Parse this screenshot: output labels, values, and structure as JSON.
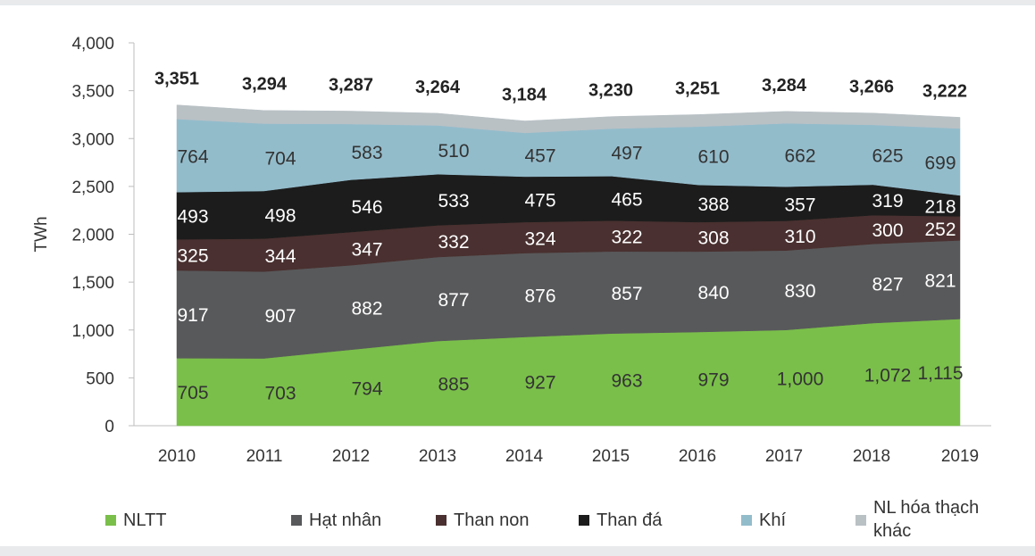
{
  "chart_data": {
    "type": "area",
    "stacked": true,
    "title": "",
    "xlabel": "",
    "ylabel": "TWh",
    "ylim": [
      0,
      4000
    ],
    "yticks": [
      0,
      500,
      1000,
      1500,
      2000,
      2500,
      3000,
      3500,
      4000
    ],
    "ytick_labels": [
      "0",
      "500",
      "1,000",
      "1,500",
      "2,000",
      "2,500",
      "3,000",
      "3,500",
      "4,000"
    ],
    "grid": false,
    "legend_position": "bottom",
    "x": [
      "2010",
      "2011",
      "2012",
      "2013",
      "2014",
      "2015",
      "2016",
      "2017",
      "2018",
      "2019"
    ],
    "totals": [
      3351,
      3294,
      3287,
      3264,
      3184,
      3230,
      3251,
      3284,
      3266,
      3222
    ],
    "total_labels": [
      "3,351",
      "3,294",
      "3,287",
      "3,264",
      "3,184",
      "3,230",
      "3,251",
      "3,284",
      "3,266",
      "3,222"
    ],
    "series": [
      {
        "name": "NLTT",
        "color": "#7abf4a",
        "values": [
          705,
          703,
          794,
          885,
          927,
          963,
          979,
          1000,
          1072,
          1115
        ],
        "labels": [
          "705",
          "703",
          "794",
          "885",
          "927",
          "963",
          "979",
          "1,000",
          "1,072",
          "1,115"
        ],
        "label_color": "#333333"
      },
      {
        "name": "Hạt nhân",
        "color": "#58595b",
        "values": [
          917,
          907,
          882,
          877,
          876,
          857,
          840,
          830,
          827,
          821
        ],
        "labels": [
          "917",
          "907",
          "882",
          "877",
          "876",
          "857",
          "840",
          "830",
          "827",
          "821"
        ],
        "label_color": "#ffffff"
      },
      {
        "name": "Than non",
        "color": "#4a3030",
        "values": [
          325,
          344,
          347,
          332,
          324,
          322,
          308,
          310,
          300,
          252
        ],
        "labels": [
          "325",
          "344",
          "347",
          "332",
          "324",
          "322",
          "308",
          "310",
          "300",
          "252"
        ],
        "label_color": "#ffffff"
      },
      {
        "name": "Than đá",
        "color": "#1c1c1c",
        "values": [
          493,
          498,
          546,
          533,
          475,
          465,
          388,
          357,
          319,
          218
        ],
        "labels": [
          "493",
          "498",
          "546",
          "533",
          "475",
          "465",
          "388",
          "357",
          "319",
          "218"
        ],
        "label_color": "#ffffff"
      },
      {
        "name": "Khí",
        "color": "#93bccb",
        "values": [
          764,
          704,
          583,
          510,
          457,
          497,
          610,
          662,
          625,
          699
        ],
        "labels": [
          "764",
          "704",
          "583",
          "510",
          "457",
          "497",
          "610",
          "662",
          "625",
          "699"
        ],
        "label_color": "#333333"
      },
      {
        "name": "NL hóa thạch khác",
        "color": "#b9c1c5",
        "values": [
          147,
          138,
          135,
          127,
          125,
          126,
          126,
          125,
          123,
          117
        ],
        "labels": [],
        "label_color": "#333333"
      }
    ]
  }
}
